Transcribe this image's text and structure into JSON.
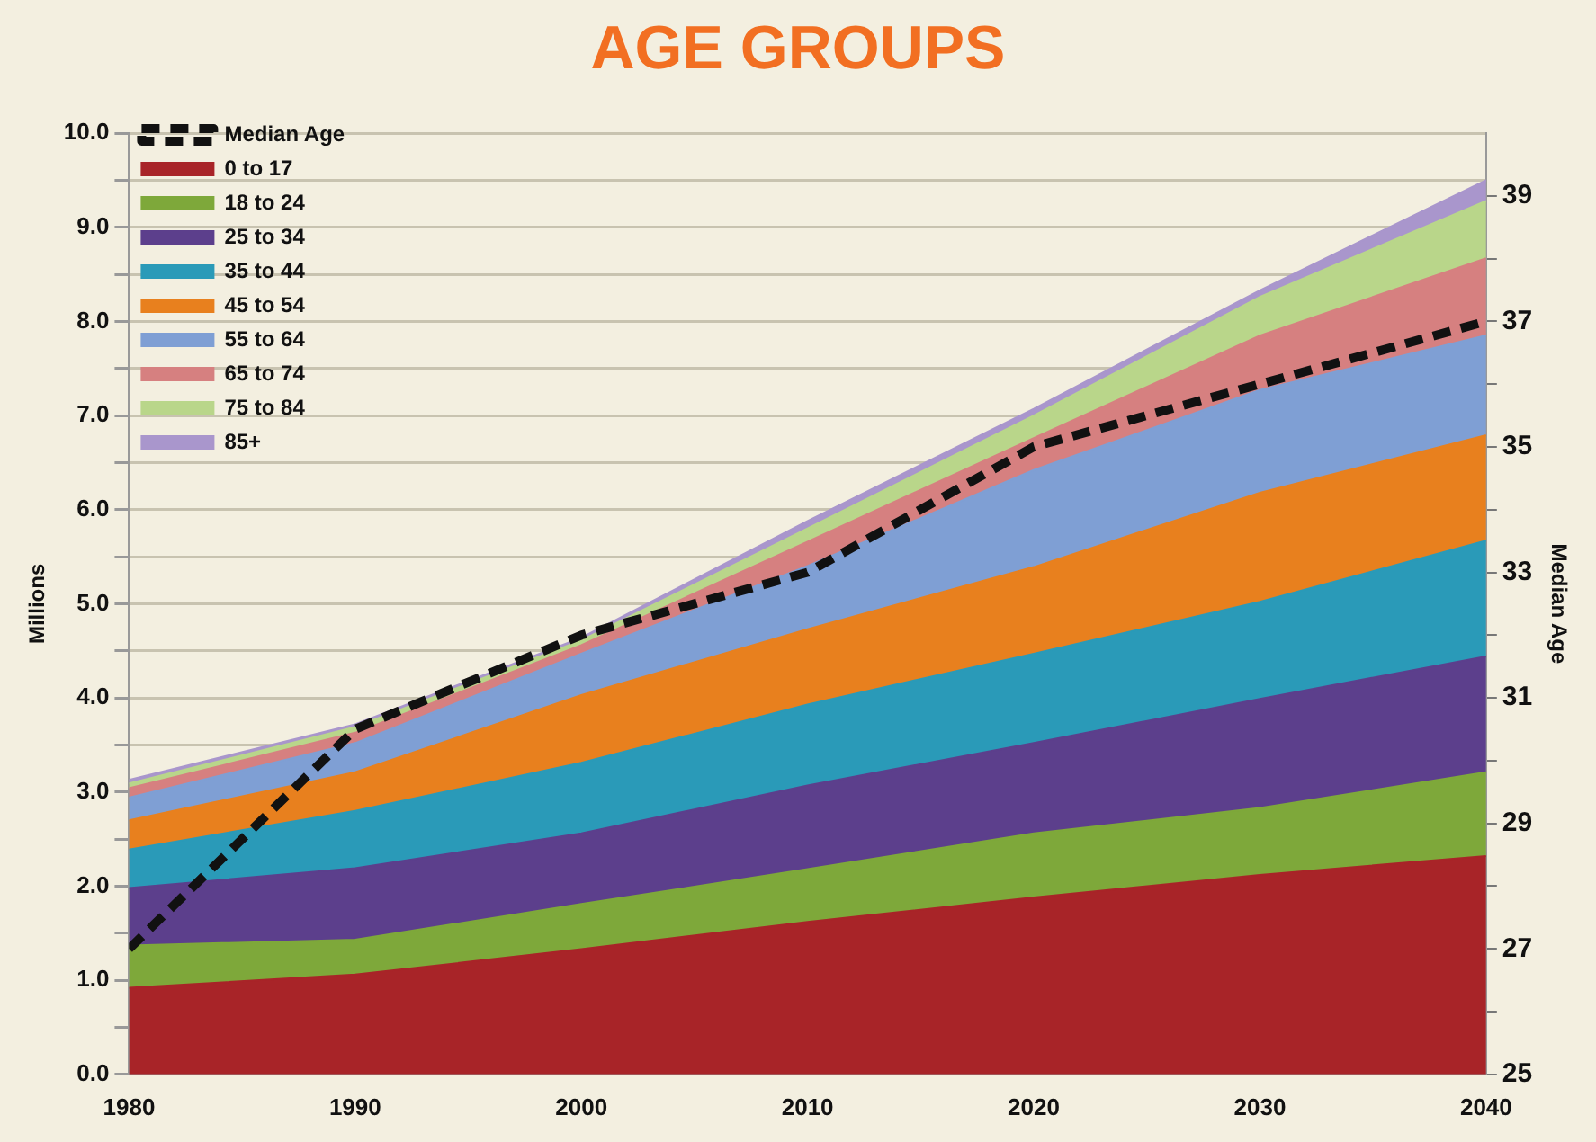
{
  "chart_data": {
    "type": "area",
    "title": "AGE GROUPS",
    "ylabel": "Millions",
    "y2label": "Median Age",
    "stacked": true,
    "x": [
      1980,
      1990,
      2000,
      2010,
      2020,
      2030,
      2040
    ],
    "series": [
      {
        "name": "Median Age",
        "type": "line",
        "axis": "y2",
        "color": "#111111",
        "line_style": "dashed",
        "values": [
          27,
          30.5,
          32,
          33,
          35,
          36,
          37
        ]
      },
      {
        "name": "0 to 17",
        "color": "#a82428",
        "values": [
          0.92,
          1.06,
          1.33,
          1.62,
          1.88,
          2.12,
          2.32
        ]
      },
      {
        "name": "18 to 24",
        "color": "#7ea83a",
        "values": [
          0.45,
          0.37,
          0.48,
          0.56,
          0.68,
          0.71,
          0.89
        ]
      },
      {
        "name": "25 to 34",
        "color": "#5c3f8c",
        "values": [
          0.61,
          0.76,
          0.75,
          0.89,
          0.96,
          1.16,
          1.23
        ]
      },
      {
        "name": "35 to 44",
        "color": "#2a9ab8",
        "values": [
          0.41,
          0.61,
          0.75,
          0.86,
          0.95,
          1.03,
          1.23
        ]
      },
      {
        "name": "45 to 54",
        "color": "#e8801e",
        "values": [
          0.31,
          0.41,
          0.72,
          0.8,
          0.92,
          1.16,
          1.12
        ]
      },
      {
        "name": "55 to 64",
        "color": "#7f9fd4",
        "values": [
          0.24,
          0.31,
          0.44,
          0.67,
          1.03,
          1.09,
          1.06
        ]
      },
      {
        "name": "65 to 74",
        "color": "#d68080",
        "values": [
          0.1,
          0.11,
          0.09,
          0.26,
          0.34,
          0.58,
          0.82
        ]
      },
      {
        "name": "75 to 84",
        "color": "#b9d68a",
        "values": [
          0.05,
          0.06,
          0.05,
          0.14,
          0.24,
          0.41,
          0.61
        ]
      },
      {
        "name": "85+",
        "color": "#a996cc",
        "values": [
          0.04,
          0.03,
          0.03,
          0.08,
          0.07,
          0.07,
          0.22
        ]
      }
    ],
    "xlim": [
      1980,
      2040
    ],
    "xticks": [
      1980,
      1990,
      2000,
      2010,
      2020,
      2030,
      2040
    ],
    "ylim": [
      0,
      10
    ],
    "yticks": [
      {
        "value": 0,
        "label": "0.0"
      },
      {
        "value": 0.5,
        "label": null
      },
      {
        "value": 1,
        "label": "1.0"
      },
      {
        "value": 1.5,
        "label": null
      },
      {
        "value": 2,
        "label": "2.0"
      },
      {
        "value": 2.5,
        "label": null
      },
      {
        "value": 3,
        "label": "3.0"
      },
      {
        "value": 3.5,
        "label": null
      },
      {
        "value": 4,
        "label": "4.0"
      },
      {
        "value": 4.5,
        "label": null
      },
      {
        "value": 5,
        "label": "5.0"
      },
      {
        "value": 5.5,
        "label": null
      },
      {
        "value": 6,
        "label": "6.0"
      },
      {
        "value": 6.5,
        "label": null
      },
      {
        "value": 7,
        "label": "7.0"
      },
      {
        "value": 7.5,
        "label": null
      },
      {
        "value": 8,
        "label": "8.0"
      },
      {
        "value": 8.5,
        "label": null
      },
      {
        "value": 9,
        "label": "9.0"
      },
      {
        "value": 9.5,
        "label": null
      },
      {
        "value": 10,
        "label": "10.0"
      }
    ],
    "y2lim": [
      25,
      40
    ],
    "y2ticks": [
      25,
      {
        "value": 26,
        "label": null
      },
      27,
      {
        "value": 28,
        "label": null
      },
      29,
      {
        "value": 30,
        "label": null
      },
      31,
      {
        "value": 32,
        "label": null
      },
      33,
      {
        "value": 34,
        "label": null
      },
      35,
      {
        "value": 36,
        "label": null
      },
      37,
      {
        "value": 38,
        "label": null
      },
      39
    ],
    "grid": "y",
    "legend": "top left"
  }
}
